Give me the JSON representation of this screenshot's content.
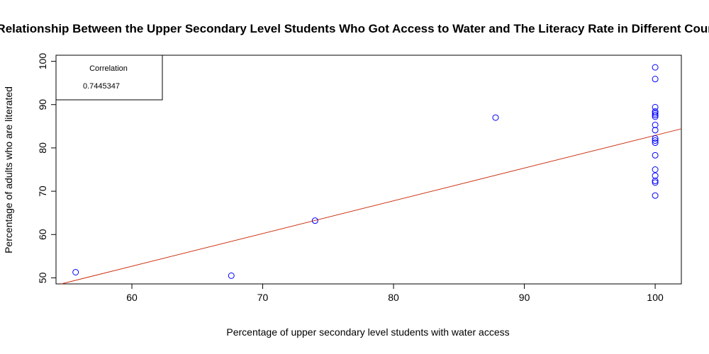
{
  "chart_data": {
    "type": "scatter",
    "title": "Relationship Between the Upper Secondary Level Students Who Got Access to Water and The Literacy Rate in Different Countries",
    "xlabel": "Percentage of upper secondary level students with water access",
    "ylabel": "Percentage of adults who are literated",
    "xlim": [
      54.2,
      102
    ],
    "ylim": [
      48.6,
      101.4
    ],
    "x_ticks": [
      60,
      70,
      80,
      90,
      100
    ],
    "y_ticks": [
      50,
      60,
      70,
      80,
      90,
      100
    ],
    "grid": false,
    "point_color": "#0000ff",
    "line_color": "#cc3311",
    "points": [
      {
        "x": 55.7,
        "y": 51.3
      },
      {
        "x": 67.6,
        "y": 50.5
      },
      {
        "x": 74.0,
        "y": 63.2
      },
      {
        "x": 87.8,
        "y": 87.0
      },
      {
        "x": 100,
        "y": 98.6
      },
      {
        "x": 100,
        "y": 95.9
      },
      {
        "x": 100,
        "y": 89.4
      },
      {
        "x": 100,
        "y": 88.4
      },
      {
        "x": 100,
        "y": 88.0
      },
      {
        "x": 100,
        "y": 87.6
      },
      {
        "x": 100,
        "y": 87.2
      },
      {
        "x": 100,
        "y": 85.3
      },
      {
        "x": 100,
        "y": 84.1
      },
      {
        "x": 100,
        "y": 82.2
      },
      {
        "x": 100,
        "y": 81.7
      },
      {
        "x": 100,
        "y": 81.2
      },
      {
        "x": 100,
        "y": 78.3
      },
      {
        "x": 100,
        "y": 75.0
      },
      {
        "x": 100,
        "y": 73.6
      },
      {
        "x": 100,
        "y": 72.4
      },
      {
        "x": 100,
        "y": 72.0
      },
      {
        "x": 100,
        "y": 69.0
      }
    ],
    "fit_line": {
      "intercept": 7.35,
      "slope": 0.7555
    },
    "legend": {
      "title": "Correlation",
      "value": "0.7445347",
      "position": "top-left"
    }
  }
}
